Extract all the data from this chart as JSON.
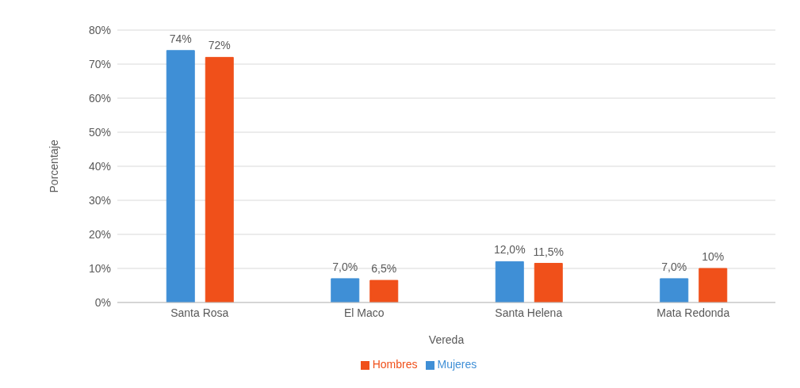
{
  "chart_data": {
    "type": "bar",
    "xlabel": "Vereda",
    "ylabel": "Porcentaje",
    "categories": [
      "Santa Rosa",
      "El Maco",
      "Santa Helena",
      "Mata Redonda"
    ],
    "series": [
      {
        "name": "Mujeres",
        "color": "#3f8fd6",
        "values": [
          74,
          7.0,
          12.0,
          7.0
        ],
        "value_labels": [
          "74%",
          "7,0%",
          "12,0%",
          "7,0%"
        ]
      },
      {
        "name": "Hombres",
        "color": "#f0501a",
        "values": [
          72,
          6.5,
          11.5,
          10
        ],
        "value_labels": [
          "72%",
          "6,5%",
          "11,5%",
          "10%"
        ]
      }
    ],
    "ylim": [
      0,
      80
    ],
    "yticks": [
      {
        "value": 0,
        "label": "0%"
      },
      {
        "value": 10,
        "label": "10%"
      },
      {
        "value": 20,
        "label": "20%"
      },
      {
        "value": 30,
        "label": "30%"
      },
      {
        "value": 40,
        "label": "40%"
      },
      {
        "value": 50,
        "label": "50%"
      },
      {
        "value": 60,
        "label": "60%"
      },
      {
        "value": 70,
        "label": "70%"
      },
      {
        "value": 80,
        "label": "80%"
      }
    ],
    "grid": "y",
    "legend": "bottom"
  }
}
